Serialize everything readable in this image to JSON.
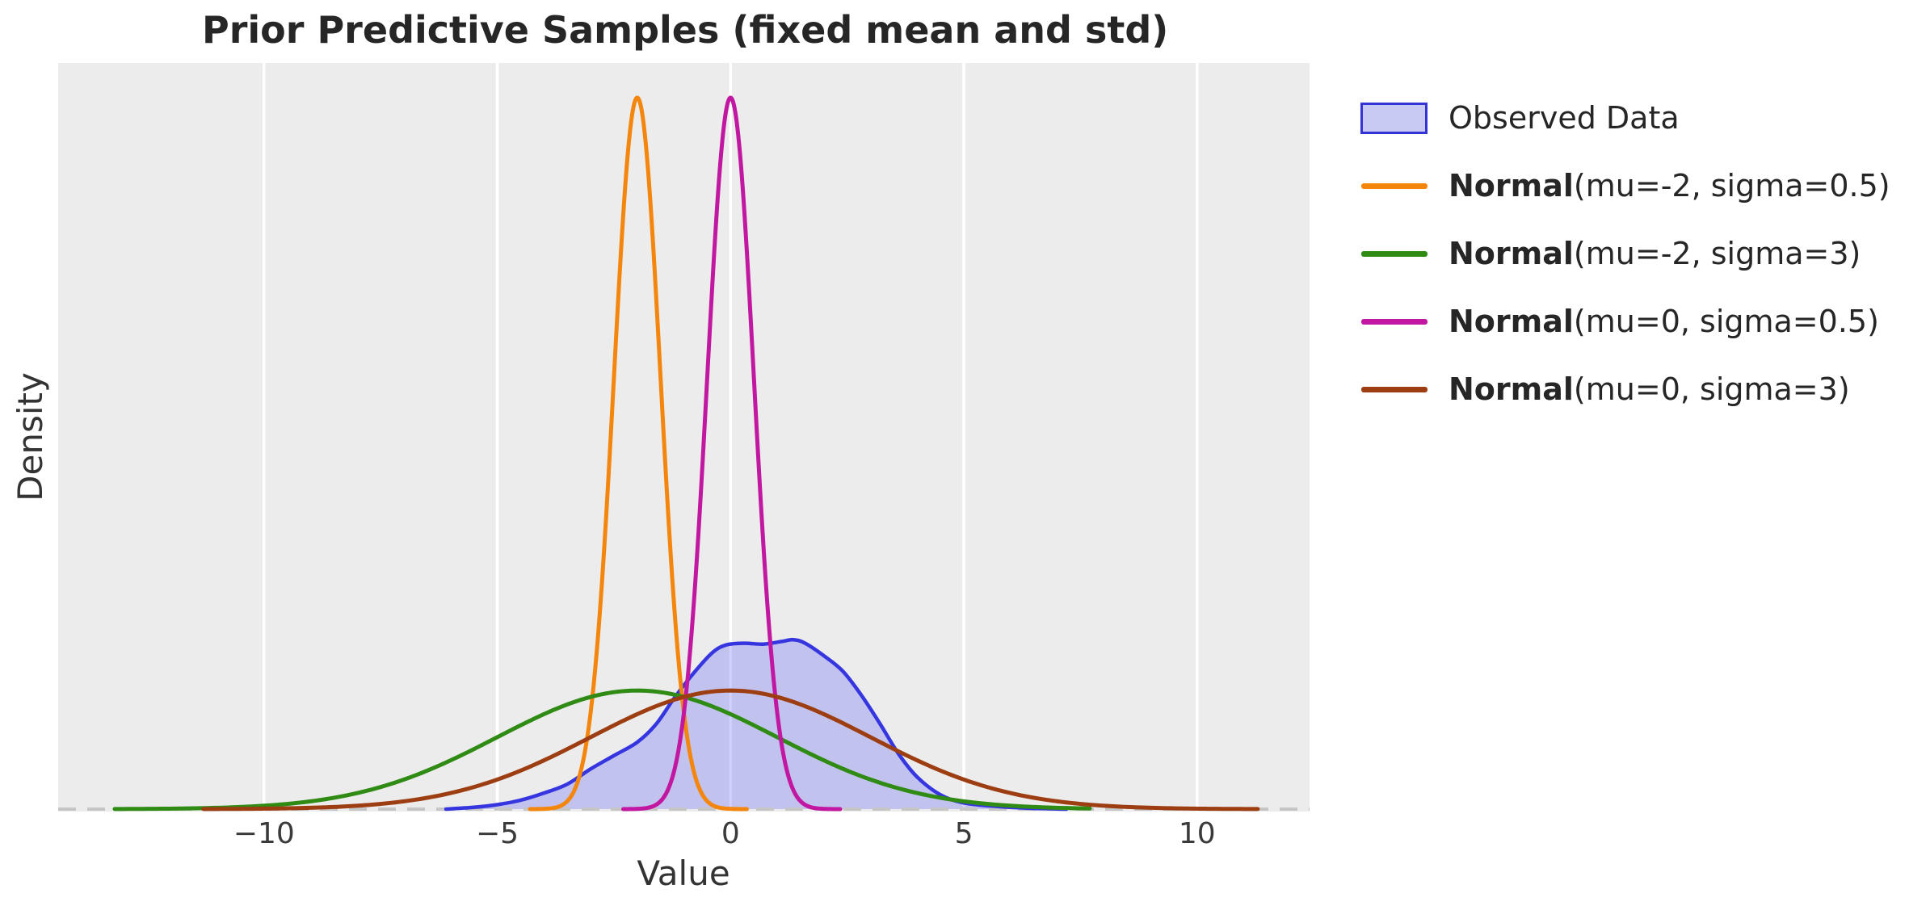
{
  "title": "Prior Predictive Samples (fixed mean and std)",
  "axes": {
    "xlabel": "Value",
    "ylabel": "Density",
    "x_tick_labels": [
      "−10",
      "−5",
      "0",
      "5",
      "10"
    ],
    "x_tick_values": [
      -10,
      -5,
      0,
      5,
      10
    ]
  },
  "legend": {
    "items": [
      {
        "kind": "patch",
        "label": "Observed Data",
        "stroke": "#3434d6",
        "fill": "#c9caf4"
      },
      {
        "kind": "line",
        "label_bold": "Normal",
        "label_rest": "(mu=-2, sigma=0.5)",
        "color": "#f5860d"
      },
      {
        "kind": "line",
        "label_bold": "Normal",
        "label_rest": "(mu=-2, sigma=3)",
        "color": "#2f8b14"
      },
      {
        "kind": "line",
        "label_bold": "Normal",
        "label_rest": "(mu=0, sigma=0.5)",
        "color": "#c217a1"
      },
      {
        "kind": "line",
        "label_bold": "Normal",
        "label_rest": "(mu=0, sigma=3)",
        "color": "#9d3d12"
      }
    ]
  },
  "chart_data": {
    "type": "area",
    "subtype": "kernel-density",
    "title": "Prior Predictive Samples (fixed mean and std)",
    "xlabel": "Value",
    "ylabel": "Density",
    "xlim": [
      -14.4,
      12.4
    ],
    "ylim": [
      0,
      0.838
    ],
    "x_ticks": [
      -10,
      -5,
      0,
      5,
      10
    ],
    "grid": "vertical white gridlines on light gray panel",
    "panel_bg": "#ececec",
    "grid_color": "#ffffff",
    "baseline": {
      "y": 0,
      "style": "dashed",
      "color": "#c6c6c6"
    },
    "legend_position": "outside upper right",
    "series": [
      {
        "name": "Observed Data",
        "style": "filled_kde",
        "color": "#3636e0",
        "fill": "rgba(85,85,245,0.28)",
        "points": [
          [
            -6.1,
            0.0
          ],
          [
            -5.5,
            0.002
          ],
          [
            -5.0,
            0.005
          ],
          [
            -4.5,
            0.01
          ],
          [
            -4.0,
            0.018
          ],
          [
            -3.5,
            0.028
          ],
          [
            -3.0,
            0.045
          ],
          [
            -2.5,
            0.06
          ],
          [
            -2.0,
            0.075
          ],
          [
            -1.6,
            0.095
          ],
          [
            -1.2,
            0.125
          ],
          [
            -0.8,
            0.152
          ],
          [
            -0.4,
            0.175
          ],
          [
            -0.1,
            0.184
          ],
          [
            0.3,
            0.186
          ],
          [
            0.7,
            0.185
          ],
          [
            1.1,
            0.188
          ],
          [
            1.35,
            0.19
          ],
          [
            1.6,
            0.186
          ],
          [
            2.0,
            0.172
          ],
          [
            2.4,
            0.155
          ],
          [
            2.8,
            0.128
          ],
          [
            3.2,
            0.096
          ],
          [
            3.6,
            0.062
          ],
          [
            4.0,
            0.036
          ],
          [
            4.5,
            0.016
          ],
          [
            5.0,
            0.007
          ],
          [
            5.7,
            0.003
          ],
          [
            6.4,
            0.001
          ],
          [
            7.2,
            0.0
          ]
        ]
      },
      {
        "name": "Normal(mu=-2, sigma=0.5)",
        "style": "line",
        "distribution": "normal",
        "mu": -2,
        "sigma": 0.5,
        "x_range": [
          -4.3,
          0.35
        ],
        "peak_density": 0.798,
        "color": "#f5860d"
      },
      {
        "name": "Normal(mu=-2, sigma=3)",
        "style": "line",
        "distribution": "normal",
        "mu": -2,
        "sigma": 3,
        "x_range": [
          -13.2,
          7.7
        ],
        "peak_density": 0.133,
        "color": "#2f8b14"
      },
      {
        "name": "Normal(mu=0, sigma=0.5)",
        "style": "line",
        "distribution": "normal",
        "mu": 0,
        "sigma": 0.5,
        "x_range": [
          -2.3,
          2.35
        ],
        "peak_density": 0.798,
        "color": "#c217a1"
      },
      {
        "name": "Normal(mu=0, sigma=3)",
        "style": "line",
        "distribution": "normal",
        "mu": 0,
        "sigma": 3,
        "x_range": [
          -11.3,
          11.3
        ],
        "peak_density": 0.133,
        "color": "#9d3d12"
      }
    ]
  }
}
